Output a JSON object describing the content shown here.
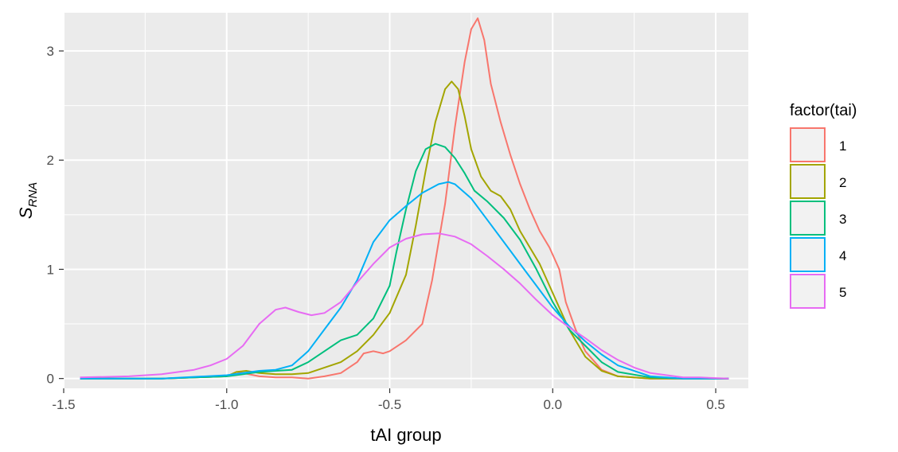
{
  "chart_data": {
    "type": "line",
    "title": "",
    "xlabel": "tAI group",
    "ylabel_main": "S",
    "ylabel_sub": "RNA",
    "xlim": [
      -1.5,
      0.6
    ],
    "ylim": [
      -0.09,
      3.35
    ],
    "xticks": [
      -1.5,
      -1.0,
      -0.5,
      0.0,
      0.5
    ],
    "xtick_labels": [
      "-1.5",
      "-1.0",
      "-0.5",
      "0.0",
      "0.5"
    ],
    "yticks": [
      0,
      1,
      2,
      3
    ],
    "ytick_labels": [
      "0",
      "1",
      "2",
      "3"
    ],
    "grid": true,
    "background": "#ebebeb",
    "legend": {
      "title": "factor(tai)",
      "position": "right"
    },
    "series": [
      {
        "name": "1",
        "color": "#f8766d",
        "x": [
          -1.45,
          -1.2,
          -1.0,
          -0.97,
          -0.95,
          -0.9,
          -0.85,
          -0.8,
          -0.75,
          -0.7,
          -0.65,
          -0.6,
          -0.58,
          -0.55,
          -0.52,
          -0.5,
          -0.45,
          -0.4,
          -0.37,
          -0.33,
          -0.3,
          -0.27,
          -0.25,
          -0.23,
          -0.21,
          -0.19,
          -0.16,
          -0.13,
          -0.1,
          -0.07,
          -0.04,
          -0.01,
          0.02,
          0.04,
          0.07,
          0.1,
          0.15,
          0.2,
          0.3,
          0.4,
          0.54
        ],
        "values": [
          0,
          0,
          0.02,
          0.06,
          0.05,
          0.02,
          0.01,
          0.01,
          0.0,
          0.02,
          0.05,
          0.15,
          0.23,
          0.25,
          0.23,
          0.25,
          0.35,
          0.5,
          0.9,
          1.6,
          2.3,
          2.9,
          3.2,
          3.3,
          3.1,
          2.7,
          2.35,
          2.05,
          1.78,
          1.55,
          1.35,
          1.2,
          1.0,
          0.7,
          0.45,
          0.25,
          0.08,
          0.02,
          0.0,
          0,
          0
        ]
      },
      {
        "name": "2",
        "color": "#a3a500",
        "x": [
          -1.45,
          -1.2,
          -1.0,
          -0.97,
          -0.94,
          -0.9,
          -0.85,
          -0.8,
          -0.75,
          -0.7,
          -0.65,
          -0.6,
          -0.55,
          -0.5,
          -0.45,
          -0.42,
          -0.39,
          -0.36,
          -0.33,
          -0.31,
          -0.29,
          -0.27,
          -0.25,
          -0.22,
          -0.19,
          -0.16,
          -0.13,
          -0.1,
          -0.07,
          -0.04,
          -0.01,
          0.02,
          0.05,
          0.08,
          0.1,
          0.15,
          0.2,
          0.3,
          0.4,
          0.54
        ],
        "values": [
          0,
          0,
          0.02,
          0.06,
          0.07,
          0.05,
          0.04,
          0.04,
          0.05,
          0.1,
          0.15,
          0.25,
          0.4,
          0.6,
          0.95,
          1.4,
          1.9,
          2.35,
          2.65,
          2.72,
          2.65,
          2.4,
          2.1,
          1.85,
          1.72,
          1.67,
          1.55,
          1.35,
          1.2,
          1.05,
          0.85,
          0.65,
          0.45,
          0.3,
          0.2,
          0.07,
          0.02,
          0,
          0,
          0
        ]
      },
      {
        "name": "3",
        "color": "#00bf7d",
        "x": [
          -1.45,
          -1.2,
          -1.0,
          -0.95,
          -0.9,
          -0.85,
          -0.8,
          -0.75,
          -0.7,
          -0.65,
          -0.6,
          -0.55,
          -0.5,
          -0.48,
          -0.45,
          -0.42,
          -0.39,
          -0.36,
          -0.33,
          -0.3,
          -0.27,
          -0.24,
          -0.2,
          -0.15,
          -0.1,
          -0.05,
          0.0,
          0.05,
          0.1,
          0.15,
          0.2,
          0.3,
          0.4,
          0.54
        ],
        "values": [
          0,
          0,
          0.02,
          0.04,
          0.06,
          0.07,
          0.08,
          0.15,
          0.25,
          0.35,
          0.4,
          0.55,
          0.85,
          1.15,
          1.55,
          1.9,
          2.1,
          2.15,
          2.12,
          2.02,
          1.88,
          1.72,
          1.62,
          1.47,
          1.27,
          1.0,
          0.7,
          0.45,
          0.3,
          0.15,
          0.06,
          0.01,
          0,
          0
        ]
      },
      {
        "name": "4",
        "color": "#00b0f6",
        "x": [
          -1.45,
          -1.2,
          -1.0,
          -0.95,
          -0.9,
          -0.85,
          -0.8,
          -0.75,
          -0.7,
          -0.65,
          -0.6,
          -0.55,
          -0.5,
          -0.45,
          -0.4,
          -0.35,
          -0.32,
          -0.3,
          -0.25,
          -0.2,
          -0.15,
          -0.1,
          -0.05,
          0.0,
          0.05,
          0.1,
          0.15,
          0.2,
          0.3,
          0.4,
          0.54
        ],
        "values": [
          0,
          0,
          0.03,
          0.05,
          0.07,
          0.08,
          0.12,
          0.25,
          0.45,
          0.65,
          0.9,
          1.25,
          1.45,
          1.58,
          1.7,
          1.78,
          1.8,
          1.78,
          1.65,
          1.45,
          1.25,
          1.05,
          0.85,
          0.65,
          0.48,
          0.34,
          0.22,
          0.12,
          0.02,
          0,
          0
        ]
      },
      {
        "name": "5",
        "color": "#e76bf3",
        "x": [
          -1.45,
          -1.3,
          -1.2,
          -1.1,
          -1.05,
          -1.0,
          -0.95,
          -0.9,
          -0.85,
          -0.82,
          -0.78,
          -0.74,
          -0.7,
          -0.65,
          -0.6,
          -0.55,
          -0.5,
          -0.45,
          -0.4,
          -0.35,
          -0.3,
          -0.25,
          -0.2,
          -0.15,
          -0.1,
          -0.05,
          0.0,
          0.05,
          0.1,
          0.15,
          0.2,
          0.25,
          0.3,
          0.35,
          0.4,
          0.45,
          0.54
        ],
        "values": [
          0.01,
          0.02,
          0.04,
          0.08,
          0.12,
          0.18,
          0.3,
          0.5,
          0.63,
          0.65,
          0.61,
          0.58,
          0.6,
          0.7,
          0.88,
          1.05,
          1.2,
          1.28,
          1.32,
          1.33,
          1.3,
          1.23,
          1.12,
          1.0,
          0.87,
          0.72,
          0.58,
          0.47,
          0.37,
          0.26,
          0.17,
          0.1,
          0.05,
          0.03,
          0.01,
          0.01,
          0.0
        ]
      }
    ]
  }
}
